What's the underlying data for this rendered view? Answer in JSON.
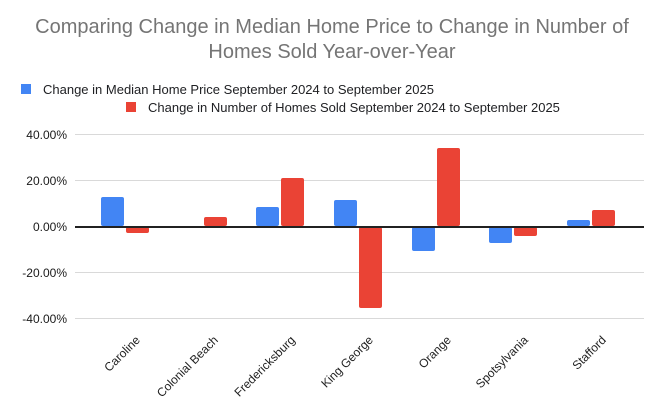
{
  "title": "Comparing Change in Median Home Price to Change in Number of Homes Sold Year-over-Year",
  "colors": {
    "series_blue": "#4285F4",
    "series_red": "#EA4335",
    "title_text": "#757575",
    "legend_text": "#202124",
    "axis_text": "#1a1a1a",
    "gridline": "#d9d9d9",
    "zero_line": "#212121",
    "background": "#ffffff"
  },
  "legend": [
    {
      "label": "Change in Median Home Price September 2024 to September 2025",
      "color": "#4285F4"
    },
    {
      "label": "Change in Number of Homes Sold September 2024 to September 2025",
      "color": "#EA4335"
    }
  ],
  "chart_data": {
    "type": "bar",
    "title": "Comparing Change in Median Home Price to Change in Number of Homes Sold Year-over-Year",
    "categories": [
      "Caroline",
      "Colonial Beach",
      "Fredericksburg",
      "King George",
      "Orange",
      "Spotsylvania",
      "Stafford"
    ],
    "series": [
      {
        "name": "Change in Median Home Price September 2024 to September 2025",
        "color": "#4285F4",
        "values": [
          13.0,
          0.0,
          8.5,
          11.5,
          -10.5,
          -7.0,
          3.0
        ]
      },
      {
        "name": "Change in Number of Homes Sold September 2024 to September 2025",
        "color": "#EA4335",
        "values": [
          -3.0,
          4.0,
          21.0,
          -35.5,
          34.0,
          -4.0,
          7.0
        ]
      }
    ],
    "value_unit": "%",
    "ylim": [
      -40,
      40
    ],
    "yticks": [
      "40.00%",
      "20.00%",
      "0.00%",
      "-20.00%",
      "-40.00%"
    ],
    "ytick_values": [
      40,
      20,
      0,
      -20,
      -40
    ],
    "grid": true,
    "legend_position": "top",
    "xlabel": "",
    "ylabel": ""
  }
}
